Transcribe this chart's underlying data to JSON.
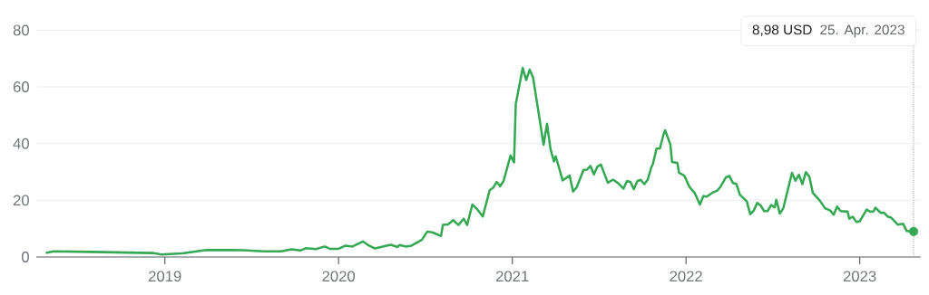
{
  "chart_data": {
    "type": "line",
    "x": [
      2018.32,
      2018.36,
      2018.58,
      2018.93,
      2018.98,
      2019.1,
      2019.24,
      2019.45,
      2019.57,
      2019.67,
      2019.73,
      2019.78,
      2019.81,
      2019.87,
      2019.92,
      2019.95,
      2020.0,
      2020.04,
      2020.08,
      2020.14,
      2020.17,
      2020.21,
      2020.3,
      2020.34,
      2020.35,
      2020.39,
      2020.42,
      2020.46,
      2020.48,
      2020.51,
      2020.54,
      2020.59,
      2020.6,
      2020.63,
      2020.66,
      2020.69,
      2020.72,
      2020.74,
      2020.77,
      2020.8,
      2020.83,
      2020.87,
      2020.89,
      2020.91,
      2020.93,
      2020.95,
      2020.99,
      2021.01,
      2021.02,
      2021.06,
      2021.08,
      2021.1,
      2021.12,
      2021.18,
      2021.2,
      2021.22,
      2021.24,
      2021.25,
      2021.29,
      2021.33,
      2021.35,
      2021.37,
      2021.41,
      2021.43,
      2021.45,
      2021.47,
      2021.49,
      2021.51,
      2021.55,
      2021.58,
      2021.61,
      2021.64,
      2021.66,
      2021.68,
      2021.7,
      2021.72,
      2021.74,
      2021.76,
      2021.78,
      2021.8,
      2021.81,
      2021.83,
      2021.85,
      2021.87,
      2021.88,
      2021.91,
      2021.92,
      2021.95,
      2021.96,
      2021.99,
      2022.02,
      2022.05,
      2022.08,
      2022.1,
      2022.12,
      2022.15,
      2022.18,
      2022.2,
      2022.23,
      2022.25,
      2022.27,
      2022.29,
      2022.31,
      2022.35,
      2022.37,
      2022.39,
      2022.41,
      2022.43,
      2022.45,
      2022.47,
      2022.49,
      2022.51,
      2022.52,
      2022.54,
      2022.56,
      2022.61,
      2022.63,
      2022.65,
      2022.67,
      2022.69,
      2022.71,
      2022.73,
      2022.77,
      2022.8,
      2022.83,
      2022.85,
      2022.87,
      2022.89,
      2022.93,
      2022.94,
      2022.96,
      2022.98,
      2023.0,
      2023.04,
      2023.06,
      2023.08,
      2023.09,
      2023.12,
      2023.14,
      2023.16,
      2023.18,
      2023.22,
      2023.25,
      2023.27,
      2023.29,
      2023.31
    ],
    "series": [
      {
        "color": "#34a853",
        "values": [
          1.5,
          2.0,
          1.8,
          1.4,
          0.9,
          1.3,
          2.5,
          2.4,
          2.0,
          2.0,
          2.7,
          2.3,
          3.1,
          2.8,
          3.7,
          2.9,
          2.9,
          4.0,
          3.7,
          5.5,
          4.2,
          3.0,
          4.3,
          3.5,
          4.2,
          3.7,
          4.0,
          5.4,
          6.1,
          8.9,
          8.7,
          7.4,
          11.3,
          11.5,
          13.0,
          11.3,
          13.5,
          11.3,
          18.5,
          16.7,
          14.3,
          23.6,
          24.4,
          26.5,
          25.0,
          26.8,
          35.8,
          33.4,
          53.9,
          66.7,
          62.4,
          66.1,
          63.2,
          39.6,
          47.0,
          38.0,
          33.7,
          35.5,
          27.0,
          28.7,
          23.1,
          24.5,
          30.7,
          30.8,
          32.1,
          29.1,
          31.9,
          32.6,
          26.2,
          27.3,
          26.0,
          24.1,
          26.8,
          26.5,
          23.9,
          26.8,
          27.2,
          25.7,
          27.3,
          31.6,
          32.9,
          38.2,
          38.3,
          43.1,
          44.7,
          39.6,
          33.5,
          33.2,
          29.7,
          28.7,
          24.7,
          22.6,
          18.5,
          21.5,
          21.3,
          22.6,
          23.4,
          24.9,
          28.1,
          28.6,
          26.1,
          25.8,
          22.0,
          19.6,
          15.1,
          16.4,
          19.1,
          18.1,
          16.2,
          16.2,
          18.3,
          17.5,
          20.2,
          15.3,
          17.2,
          29.7,
          26.9,
          29.0,
          25.7,
          29.9,
          28.3,
          22.6,
          19.9,
          17.2,
          16.4,
          14.9,
          17.8,
          16.2,
          16.0,
          13.5,
          14.2,
          12.4,
          12.6,
          16.7,
          16.0,
          16.1,
          17.4,
          15.6,
          15.6,
          14.3,
          13.9,
          11.4,
          11.7,
          9.2,
          9.0,
          8.98
        ]
      },
      {
        "type": "scatter",
        "color": "#34a853",
        "x": [
          2023.31
        ],
        "values": [
          8.98
        ]
      }
    ],
    "xlim": [
      2018.26,
      2023.35
    ],
    "ylim": [
      0,
      80
    ],
    "xticks": [
      2019,
      2020,
      2021,
      2022,
      2023
    ],
    "yticks": [
      0,
      20,
      40,
      60,
      80
    ],
    "grid": "y",
    "ref_lines": [
      {
        "axis": "x",
        "value": 2023.31,
        "color": "#9aa0a6",
        "line_style": "dotted"
      }
    ],
    "annotations": [
      "8,98 USD",
      "25. Apr. 2023"
    ]
  }
}
